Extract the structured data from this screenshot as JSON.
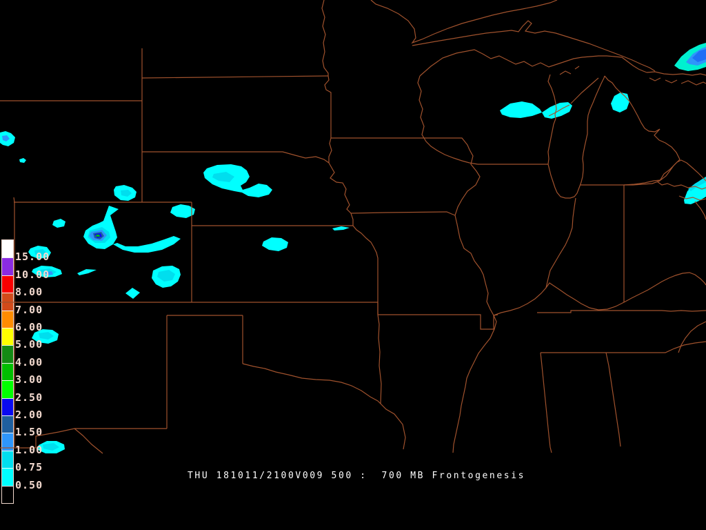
{
  "caption": {
    "text": "THU 181011/2100V009 500 :  700 MB Frontogenesis",
    "color": "#FFFFFF"
  },
  "legend": {
    "labels": [
      "15.00",
      "10.00",
      "8.00",
      "7.00",
      "6.00",
      "5.00",
      "4.00",
      "3.00",
      "2.50",
      "2.00",
      "1.50",
      "1.00",
      "0.75",
      "0.50"
    ],
    "segment_colors": [
      "#FFFFFF",
      "#8A2BE2",
      "#F80000",
      "#D24A1A",
      "#FF8C00",
      "#FFFF00",
      "#148A14",
      "#00BE00",
      "#00FF00",
      "#0A0AF0",
      "#1F5F9E",
      "#2E96FA",
      "#00DEEE",
      "#00FFFF",
      "#000000"
    ],
    "label_color": "#F2D9CE",
    "border_color": "#F2D9CE"
  },
  "map": {
    "background": "#000000",
    "outline_color": "#A0522D",
    "fill_levels": {
      "0.50": "#00FFFF",
      "0.75": "#00DEEE",
      "1.00": "#2E96FA",
      "1.50": "#1F5F9E",
      "2.00": "#0A0AF0",
      "2.50": "#00FF00",
      "3.00": "#00BE00",
      "alt_outer": "#00F0D0",
      "alt_royal": "#1F6FF5"
    }
  }
}
